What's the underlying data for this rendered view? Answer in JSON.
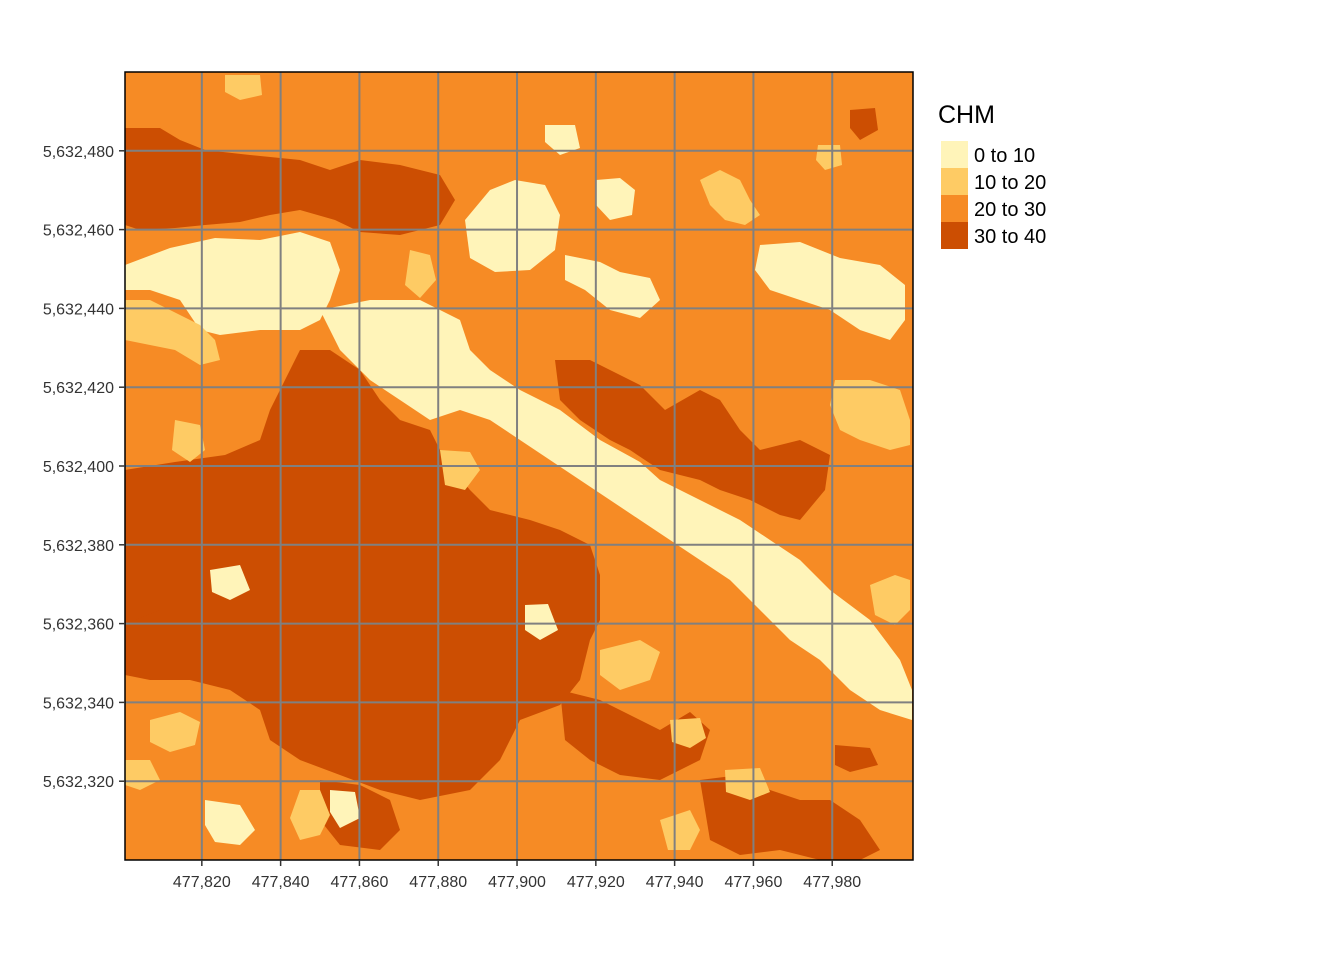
{
  "legend": {
    "title": "CHM",
    "classes": [
      {
        "label": "0 to 10",
        "color": "#FFF4B9"
      },
      {
        "label": "10 to 20",
        "color": "#FECB64"
      },
      {
        "label": "20 to 30",
        "color": "#F68B25"
      },
      {
        "label": "30 to 40",
        "color": "#CC4E02"
      }
    ]
  },
  "axes": {
    "x_ticks": [
      "477,820",
      "477,840",
      "477,860",
      "477,880",
      "477,900",
      "477,920",
      "477,940",
      "477,960",
      "477,980"
    ],
    "y_ticks": [
      "5,632,480",
      "5,632,460",
      "5,632,440",
      "5,632,420",
      "5,632,400",
      "5,632,380",
      "5,632,360",
      "5,632,340",
      "5,632,320"
    ]
  },
  "colors": {
    "graticule": "#808080",
    "frame": "#000000"
  }
}
